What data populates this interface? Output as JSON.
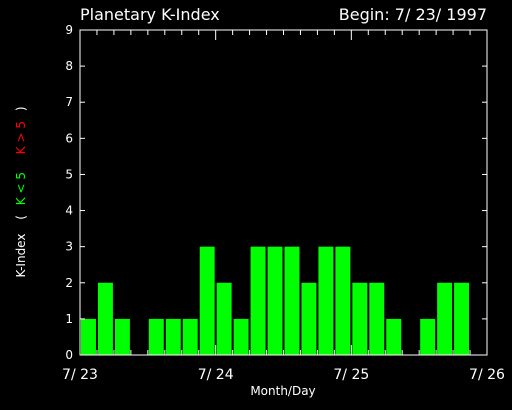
{
  "chart_data": {
    "type": "bar",
    "title": "Planetary K-Index",
    "begin_label": "Begin: 7/ 23/ 1997",
    "xlabel": "Month/Day",
    "ylabel": {
      "main": "K-Index",
      "open": "(",
      "low": "K < 5",
      "high": "K > 5",
      "close": ")"
    },
    "ylim": [
      0,
      9
    ],
    "yticks": [
      "0",
      "1",
      "2",
      "3",
      "4",
      "5",
      "6",
      "7",
      "8",
      "9"
    ],
    "xticks": [
      {
        "label": "7/ 23",
        "slot": 0
      },
      {
        "label": "7/ 24",
        "slot": 8
      },
      {
        "label": "7/ 25",
        "slot": 16
      },
      {
        "label": "7/ 26",
        "slot": 24
      }
    ],
    "slots_total": 24,
    "values": [
      1,
      2,
      1,
      0,
      1,
      1,
      1,
      3,
      2,
      1,
      3,
      3,
      3,
      2,
      3,
      3,
      2,
      2,
      1,
      0,
      1,
      2,
      2,
      0
    ],
    "colors": {
      "background": "#000000",
      "axis": "#ffffff",
      "bar_low": "#00ff00",
      "bar_high": "#ff0000",
      "label_low": "#00ff00",
      "label_high": "#ff0000"
    }
  }
}
